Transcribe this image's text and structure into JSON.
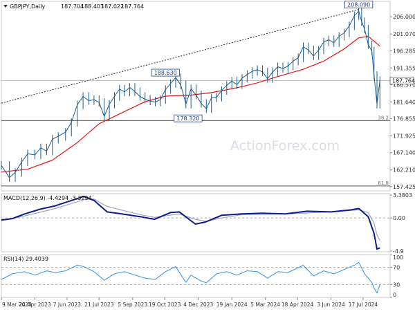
{
  "chart_data": [
    {
      "type": "ohlc-price",
      "symbol_label": "GBPJPY,Daily",
      "ohlc_values": [
        "187.704",
        "188.403",
        "187.022",
        "187.764"
      ],
      "y_ticks": [
        "206.000",
        "201.070",
        "196.285",
        "191.355",
        "186.570",
        "181.640",
        "176.855",
        "171.925",
        "167.140",
        "162.210",
        "157.425"
      ],
      "ylim": [
        156.2,
        210.4
      ],
      "current_price": 187.764,
      "current_price_label": "187.764",
      "sma_color": "#e31414",
      "price_color": "#1c5a8a",
      "trendline_points": [
        {
          "x": "2023-03-09",
          "y": 181.3
        },
        {
          "x": "2024-07-11",
          "y": 208.09
        }
      ],
      "horizontal_levels": [
        {
          "value": 176.3,
          "label": "38.2"
        },
        {
          "value": 157.6,
          "label": "61.8"
        }
      ],
      "annotations": [
        {
          "label": "208.090",
          "x": "2024-07-11",
          "y": 208.09
        },
        {
          "label": "188.630",
          "x": "2023-10-20",
          "y": 188.63
        },
        {
          "label": "178.320",
          "x": "2023-11-20",
          "y": 178.32
        }
      ],
      "watermark": "ActionForex.com",
      "price_series": [
        {
          "x": "2023-03-09",
          "y": 163.5
        },
        {
          "x": "2023-03-20",
          "y": 160.0
        },
        {
          "x": "2023-03-28",
          "y": 161.5
        },
        {
          "x": "2023-04-06",
          "y": 164.5
        },
        {
          "x": "2023-04-14",
          "y": 166.8
        },
        {
          "x": "2023-04-24",
          "y": 166.5
        },
        {
          "x": "2023-05-02",
          "y": 168.5
        },
        {
          "x": "2023-05-10",
          "y": 167.6
        },
        {
          "x": "2023-05-18",
          "y": 171.0
        },
        {
          "x": "2023-05-26",
          "y": 171.8
        },
        {
          "x": "2023-06-05",
          "y": 173.0
        },
        {
          "x": "2023-06-13",
          "y": 175.8
        },
        {
          "x": "2023-06-21",
          "y": 180.8
        },
        {
          "x": "2023-06-29",
          "y": 183.2
        },
        {
          "x": "2023-07-07",
          "y": 182.0
        },
        {
          "x": "2023-07-14",
          "y": 182.3
        },
        {
          "x": "2023-07-21",
          "y": 181.5
        },
        {
          "x": "2023-07-28",
          "y": 177.5
        },
        {
          "x": "2023-08-04",
          "y": 181.0
        },
        {
          "x": "2023-08-11",
          "y": 183.2
        },
        {
          "x": "2023-08-18",
          "y": 185.3
        },
        {
          "x": "2023-08-25",
          "y": 184.5
        },
        {
          "x": "2023-09-01",
          "y": 185.8
        },
        {
          "x": "2023-09-08",
          "y": 184.6
        },
        {
          "x": "2023-09-15",
          "y": 183.2
        },
        {
          "x": "2023-09-22",
          "y": 182.4
        },
        {
          "x": "2023-09-29",
          "y": 181.9
        },
        {
          "x": "2023-10-06",
          "y": 181.6
        },
        {
          "x": "2023-10-13",
          "y": 182.3
        },
        {
          "x": "2023-10-20",
          "y": 185.2
        },
        {
          "x": "2023-10-27",
          "y": 186.9
        },
        {
          "x": "2023-11-03",
          "y": 188.6
        },
        {
          "x": "2023-11-10",
          "y": 186.5
        },
        {
          "x": "2023-11-17",
          "y": 181.0
        },
        {
          "x": "2023-11-24",
          "y": 185.4
        },
        {
          "x": "2023-12-01",
          "y": 183.6
        },
        {
          "x": "2023-12-08",
          "y": 181.2
        },
        {
          "x": "2023-12-15",
          "y": 179.7
        },
        {
          "x": "2023-12-22",
          "y": 182.8
        },
        {
          "x": "2023-12-29",
          "y": 183.0
        },
        {
          "x": "2024-01-05",
          "y": 184.9
        },
        {
          "x": "2024-01-12",
          "y": 186.4
        },
        {
          "x": "2024-01-19",
          "y": 187.6
        },
        {
          "x": "2024-01-26",
          "y": 186.6
        },
        {
          "x": "2024-02-02",
          "y": 188.4
        },
        {
          "x": "2024-02-09",
          "y": 189.5
        },
        {
          "x": "2024-02-16",
          "y": 190.4
        },
        {
          "x": "2024-02-23",
          "y": 190.9
        },
        {
          "x": "2024-03-01",
          "y": 190.2
        },
        {
          "x": "2024-03-08",
          "y": 188.3
        },
        {
          "x": "2024-03-15",
          "y": 190.2
        },
        {
          "x": "2024-03-22",
          "y": 191.7
        },
        {
          "x": "2024-03-29",
          "y": 191.2
        },
        {
          "x": "2024-04-05",
          "y": 191.9
        },
        {
          "x": "2024-04-12",
          "y": 193.3
        },
        {
          "x": "2024-04-19",
          "y": 194.3
        },
        {
          "x": "2024-04-26",
          "y": 197.4
        },
        {
          "x": "2024-05-03",
          "y": 196.5
        },
        {
          "x": "2024-05-10",
          "y": 194.8
        },
        {
          "x": "2024-05-17",
          "y": 196.5
        },
        {
          "x": "2024-05-24",
          "y": 198.8
        },
        {
          "x": "2024-05-31",
          "y": 199.4
        },
        {
          "x": "2024-06-07",
          "y": 198.6
        },
        {
          "x": "2024-06-14",
          "y": 200.4
        },
        {
          "x": "2024-06-21",
          "y": 201.4
        },
        {
          "x": "2024-06-28",
          "y": 203.4
        },
        {
          "x": "2024-07-05",
          "y": 206.3
        },
        {
          "x": "2024-07-11",
          "y": 207.6
        },
        {
          "x": "2024-07-15",
          "y": 204.6
        },
        {
          "x": "2024-07-19",
          "y": 202.5
        },
        {
          "x": "2024-07-24",
          "y": 198.0
        },
        {
          "x": "2024-07-29",
          "y": 196.2
        },
        {
          "x": "2024-08-01",
          "y": 189.2
        },
        {
          "x": "2024-08-05",
          "y": 181.0
        },
        {
          "x": "2024-08-09",
          "y": 187.76
        }
      ],
      "sma_series": [
        {
          "x": "2023-03-09",
          "y": 161.6
        },
        {
          "x": "2023-04-14",
          "y": 162.4
        },
        {
          "x": "2023-05-18",
          "y": 165.0
        },
        {
          "x": "2023-06-21",
          "y": 170.0
        },
        {
          "x": "2023-07-21",
          "y": 175.4
        },
        {
          "x": "2023-08-25",
          "y": 178.9
        },
        {
          "x": "2023-09-22",
          "y": 181.7
        },
        {
          "x": "2023-10-20",
          "y": 183.3
        },
        {
          "x": "2023-11-24",
          "y": 183.6
        },
        {
          "x": "2023-12-22",
          "y": 184.3
        },
        {
          "x": "2024-01-26",
          "y": 185.7
        },
        {
          "x": "2024-02-23",
          "y": 187.1
        },
        {
          "x": "2024-03-22",
          "y": 188.9
        },
        {
          "x": "2024-04-26",
          "y": 191.0
        },
        {
          "x": "2024-05-24",
          "y": 193.3
        },
        {
          "x": "2024-06-21",
          "y": 196.8
        },
        {
          "x": "2024-07-11",
          "y": 200.0
        },
        {
          "x": "2024-07-24",
          "y": 200.4
        },
        {
          "x": "2024-08-09",
          "y": 197.6
        }
      ]
    },
    {
      "type": "macd",
      "label": "MACD(12,26,9) -4.4294 -3.3294",
      "y_ticks": [
        "3.3803",
        "0.00",
        "-4.9"
      ],
      "ylim": [
        -5.0,
        3.6
      ],
      "line_color": "#0c1a8c",
      "signal_color": "#9aa6b8",
      "macd_series": [
        {
          "x": "2023-03-09",
          "y": -0.3
        },
        {
          "x": "2023-03-24",
          "y": -0.1
        },
        {
          "x": "2023-04-10",
          "y": 0.6
        },
        {
          "x": "2023-05-01",
          "y": 1.3
        },
        {
          "x": "2023-05-22",
          "y": 1.8
        },
        {
          "x": "2023-06-19",
          "y": 2.8
        },
        {
          "x": "2023-06-30",
          "y": 3.2
        },
        {
          "x": "2023-07-14",
          "y": 2.6
        },
        {
          "x": "2023-08-01",
          "y": 0.9
        },
        {
          "x": "2023-08-21",
          "y": 0.6
        },
        {
          "x": "2023-09-15",
          "y": 0.2
        },
        {
          "x": "2023-10-05",
          "y": -0.2
        },
        {
          "x": "2023-10-27",
          "y": 0.8
        },
        {
          "x": "2023-11-08",
          "y": 0.9
        },
        {
          "x": "2023-11-30",
          "y": -0.9
        },
        {
          "x": "2023-12-14",
          "y": -0.6
        },
        {
          "x": "2024-01-05",
          "y": 0.4
        },
        {
          "x": "2024-02-02",
          "y": 0.6
        },
        {
          "x": "2024-03-01",
          "y": 0.7
        },
        {
          "x": "2024-04-01",
          "y": 0.6
        },
        {
          "x": "2024-05-01",
          "y": 1.0
        },
        {
          "x": "2024-06-03",
          "y": 0.9
        },
        {
          "x": "2024-07-01",
          "y": 1.2
        },
        {
          "x": "2024-07-11",
          "y": 1.4
        },
        {
          "x": "2024-07-24",
          "y": 0.2
        },
        {
          "x": "2024-08-01",
          "y": -2.3
        },
        {
          "x": "2024-08-05",
          "y": -4.6
        },
        {
          "x": "2024-08-09",
          "y": -4.43
        }
      ],
      "signal_series": [
        {
          "x": "2023-03-09",
          "y": -0.4
        },
        {
          "x": "2023-04-10",
          "y": 0.3
        },
        {
          "x": "2023-05-22",
          "y": 1.4
        },
        {
          "x": "2023-06-30",
          "y": 2.7
        },
        {
          "x": "2023-07-14",
          "y": 2.8
        },
        {
          "x": "2023-08-01",
          "y": 1.7
        },
        {
          "x": "2023-09-15",
          "y": 0.5
        },
        {
          "x": "2023-10-05",
          "y": 0.1
        },
        {
          "x": "2023-11-08",
          "y": 0.6
        },
        {
          "x": "2023-11-30",
          "y": -0.2
        },
        {
          "x": "2023-12-14",
          "y": -0.5
        },
        {
          "x": "2024-01-05",
          "y": 0.0
        },
        {
          "x": "2024-02-02",
          "y": 0.5
        },
        {
          "x": "2024-04-01",
          "y": 0.6
        },
        {
          "x": "2024-06-03",
          "y": 0.9
        },
        {
          "x": "2024-07-11",
          "y": 1.2
        },
        {
          "x": "2024-07-24",
          "y": 0.8
        },
        {
          "x": "2024-08-01",
          "y": -0.8
        },
        {
          "x": "2024-08-05",
          "y": -2.5
        },
        {
          "x": "2024-08-09",
          "y": -3.33
        }
      ]
    },
    {
      "type": "rsi",
      "label": "RSI(14) 29.4039",
      "y_ticks": [
        "100",
        "70",
        "30",
        "0"
      ],
      "ylim": [
        0,
        100
      ],
      "levels": [
        70,
        30
      ],
      "line_color": "#2f94e6",
      "rsi_series": [
        {
          "x": "2023-03-09",
          "y": 42
        },
        {
          "x": "2023-03-24",
          "y": 55
        },
        {
          "x": "2023-04-10",
          "y": 60
        },
        {
          "x": "2023-04-24",
          "y": 52
        },
        {
          "x": "2023-05-10",
          "y": 62
        },
        {
          "x": "2023-05-22",
          "y": 58
        },
        {
          "x": "2023-06-05",
          "y": 62
        },
        {
          "x": "2023-06-21",
          "y": 75
        },
        {
          "x": "2023-06-30",
          "y": 72
        },
        {
          "x": "2023-07-14",
          "y": 60
        },
        {
          "x": "2023-07-28",
          "y": 40
        },
        {
          "x": "2023-08-11",
          "y": 55
        },
        {
          "x": "2023-08-25",
          "y": 60
        },
        {
          "x": "2023-09-08",
          "y": 52
        },
        {
          "x": "2023-09-22",
          "y": 45
        },
        {
          "x": "2023-10-06",
          "y": 42
        },
        {
          "x": "2023-10-20",
          "y": 60
        },
        {
          "x": "2023-11-03",
          "y": 72
        },
        {
          "x": "2023-11-17",
          "y": 35
        },
        {
          "x": "2023-11-24",
          "y": 52
        },
        {
          "x": "2023-12-08",
          "y": 38
        },
        {
          "x": "2023-12-15",
          "y": 34
        },
        {
          "x": "2023-12-29",
          "y": 55
        },
        {
          "x": "2024-01-12",
          "y": 60
        },
        {
          "x": "2024-01-26",
          "y": 52
        },
        {
          "x": "2024-02-09",
          "y": 62
        },
        {
          "x": "2024-02-23",
          "y": 60
        },
        {
          "x": "2024-03-08",
          "y": 45
        },
        {
          "x": "2024-03-22",
          "y": 60
        },
        {
          "x": "2024-04-05",
          "y": 58
        },
        {
          "x": "2024-04-26",
          "y": 75
        },
        {
          "x": "2024-05-10",
          "y": 50
        },
        {
          "x": "2024-05-24",
          "y": 62
        },
        {
          "x": "2024-06-07",
          "y": 55
        },
        {
          "x": "2024-06-21",
          "y": 65
        },
        {
          "x": "2024-07-05",
          "y": 75
        },
        {
          "x": "2024-07-11",
          "y": 82
        },
        {
          "x": "2024-07-19",
          "y": 55
        },
        {
          "x": "2024-07-29",
          "y": 35
        },
        {
          "x": "2024-08-01",
          "y": 22
        },
        {
          "x": "2024-08-05",
          "y": 10
        },
        {
          "x": "2024-08-09",
          "y": 29.4
        }
      ]
    }
  ],
  "x_axis": {
    "range": [
      "2023-03-09",
      "2024-08-23"
    ],
    "ticks": [
      {
        "x": "2023-03-09",
        "label": "9 Mar 2023"
      },
      {
        "x": "2023-04-24",
        "label": "24 Apr 2023"
      },
      {
        "x": "2023-06-07",
        "label": "7 Jun 2023"
      },
      {
        "x": "2023-07-21",
        "label": "21 Jul 2023"
      },
      {
        "x": "2023-09-05",
        "label": "5 Sep 2023"
      },
      {
        "x": "2023-10-19",
        "label": "19 Oct 2023"
      },
      {
        "x": "2023-12-04",
        "label": "4 Dec 2023"
      },
      {
        "x": "2024-01-19",
        "label": "19 Jan 2024"
      },
      {
        "x": "2024-03-05",
        "label": "5 Mar 2024"
      },
      {
        "x": "2024-04-18",
        "label": "18 Apr 2024"
      },
      {
        "x": "2024-06-03",
        "label": "3 Jun 2024"
      },
      {
        "x": "2024-07-17",
        "label": "17 Jul 2024"
      }
    ]
  }
}
